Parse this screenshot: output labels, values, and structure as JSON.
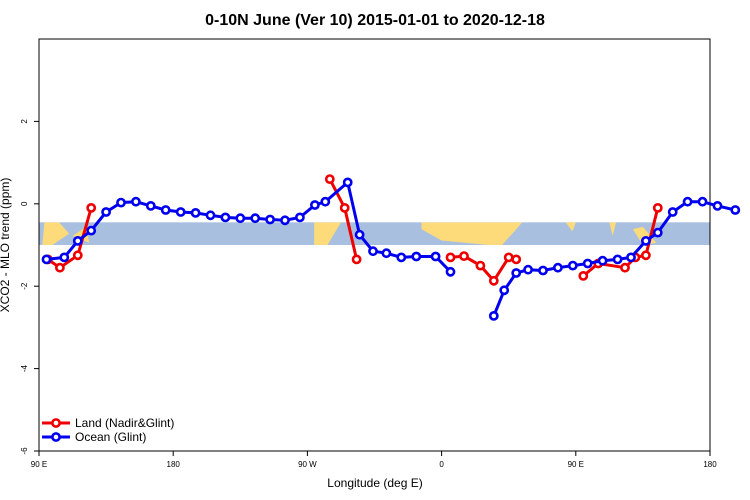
{
  "chart_data": {
    "type": "line",
    "title": "0-10N June (Ver 10)   2015-01-01 to 2020-12-18",
    "xlabel": "Longitude (deg E)",
    "ylabel": "XCO2 - MLO trend (ppm)",
    "xlim": [
      90,
      540
    ],
    "ylim": [
      -6,
      4
    ],
    "x_ticks": [
      {
        "value": 90,
        "label": "90 E"
      },
      {
        "value": 180,
        "label": "180"
      },
      {
        "value": 270,
        "label": "90 W"
      },
      {
        "value": 360,
        "label": "0"
      },
      {
        "value": 450,
        "label": "90 E"
      },
      {
        "value": 540,
        "label": "180"
      }
    ],
    "y_ticks": [
      {
        "value": -6,
        "label": "-6"
      },
      {
        "value": -4,
        "label": "-4"
      },
      {
        "value": -2,
        "label": "-2"
      },
      {
        "value": 0,
        "label": "0"
      },
      {
        "value": 2,
        "label": "2"
      }
    ],
    "band": {
      "y_min": -1,
      "y_max": -0.45,
      "ocean_color": "#a9bfdf",
      "land_color": "#fddb7a"
    },
    "series": [
      {
        "name": "Land (Nadir&Glint)",
        "color": "#ee0000",
        "segments": [
          [
            [
              96,
              -1.35
            ],
            [
              104,
              -1.55
            ],
            [
              116,
              -1.25
            ],
            [
              125,
              -0.1
            ]
          ],
          [
            [
              285,
              0.6
            ],
            [
              295,
              -0.1
            ],
            [
              303,
              -1.35
            ]
          ],
          [
            [
              366,
              -1.3
            ],
            [
              375,
              -1.27
            ],
            [
              386,
              -1.5
            ],
            [
              395,
              -1.87
            ],
            [
              405,
              -1.3
            ],
            [
              410,
              -1.35
            ]
          ],
          [
            [
              455,
              -1.75
            ],
            [
              465,
              -1.45
            ],
            [
              483,
              -1.55
            ],
            [
              490,
              -1.3
            ],
            [
              497,
              -1.25
            ],
            [
              505,
              -0.1
            ]
          ]
        ]
      },
      {
        "name": "Ocean (Glint)",
        "color": "#0000ee",
        "segments": [
          [
            [
              95,
              -1.35
            ],
            [
              107,
              -1.3
            ],
            [
              116,
              -0.9
            ],
            [
              125,
              -0.65
            ],
            [
              135,
              -0.2
            ],
            [
              145,
              0.03
            ],
            [
              155,
              0.05
            ],
            [
              165,
              -0.05
            ],
            [
              175,
              -0.15
            ],
            [
              185,
              -0.2
            ],
            [
              195,
              -0.22
            ],
            [
              205,
              -0.28
            ],
            [
              215,
              -0.33
            ],
            [
              225,
              -0.35
            ],
            [
              235,
              -0.35
            ],
            [
              245,
              -0.38
            ],
            [
              255,
              -0.4
            ],
            [
              265,
              -0.33
            ],
            [
              275,
              -0.03
            ],
            [
              282,
              0.05
            ],
            [
              297,
              0.52
            ],
            [
              305,
              -0.75
            ],
            [
              314,
              -1.15
            ],
            [
              323,
              -1.2
            ],
            [
              333,
              -1.3
            ],
            [
              343,
              -1.28
            ],
            [
              356,
              -1.28
            ],
            [
              366,
              -1.65
            ]
          ],
          [
            [
              395,
              -2.72
            ],
            [
              402,
              -2.1
            ],
            [
              410,
              -1.68
            ],
            [
              418,
              -1.6
            ],
            [
              428,
              -1.62
            ],
            [
              438,
              -1.55
            ],
            [
              448,
              -1.5
            ],
            [
              458,
              -1.45
            ],
            [
              468,
              -1.38
            ],
            [
              478,
              -1.35
            ],
            [
              487,
              -1.3
            ],
            [
              497,
              -0.9
            ],
            [
              505,
              -0.7
            ],
            [
              515,
              -0.2
            ],
            [
              525,
              0.05
            ],
            [
              535,
              0.05
            ],
            [
              545,
              -0.05
            ],
            [
              557,
              -0.15
            ]
          ]
        ]
      }
    ]
  }
}
